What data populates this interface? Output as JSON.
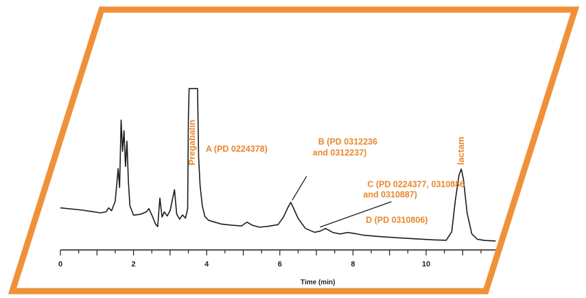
{
  "colors": {
    "frame": "#f0913a",
    "label": "#e8872e",
    "trace": "#1a1a1a",
    "axis": "#1a1a1a"
  },
  "chart_data": {
    "type": "line",
    "title": "",
    "xlabel": "Time (min)",
    "ylabel": "",
    "xlim": [
      0,
      11.9
    ],
    "ylim": [
      0,
      100
    ],
    "xticks": [
      0,
      2,
      4,
      6,
      8,
      10
    ],
    "grid": false,
    "series": [
      {
        "x": [
          0,
          0.6,
          1.1,
          1.25,
          1.32,
          1.4,
          1.5,
          1.58,
          1.62,
          1.66,
          1.7,
          1.74,
          1.78,
          1.82,
          1.86,
          1.9,
          2.0,
          2.2,
          2.35,
          2.42,
          2.5,
          2.6,
          2.66,
          2.72,
          2.78,
          2.84,
          2.92,
          3.0,
          3.06,
          3.12,
          3.18,
          3.26,
          3.34,
          3.42,
          3.48,
          3.5,
          3.52,
          3.75,
          3.78,
          3.82,
          3.88,
          3.95,
          4.05,
          4.2,
          4.4,
          4.7,
          4.95,
          5.1,
          5.25,
          5.45,
          5.7,
          5.95,
          6.1,
          6.22,
          6.3,
          6.38,
          6.5,
          6.7,
          6.95,
          7.1,
          7.25,
          7.45,
          7.65,
          7.85,
          8.05,
          8.3,
          8.7,
          9.2,
          9.7,
          10.2,
          10.55,
          10.7,
          10.8,
          10.9,
          10.96,
          11.02,
          11.12,
          11.25,
          11.4,
          11.6,
          11.9
        ],
        "values": [
          16.4,
          15.3,
          14.0,
          14.5,
          16.4,
          15.0,
          19.5,
          35.0,
          26.0,
          58.0,
          43.2,
          53.0,
          36.0,
          48.0,
          29.0,
          17.4,
          12.9,
          13.4,
          14.5,
          16.0,
          13.0,
          8.7,
          7.5,
          21.0,
          12.0,
          14.5,
          12.5,
          15.0,
          20.0,
          25.0,
          13.4,
          11.0,
          13.0,
          11.5,
          16.0,
          58.0,
          73.0,
          73.0,
          40.0,
          27.0,
          17.4,
          12.3,
          10.5,
          9.7,
          8.7,
          8.1,
          7.8,
          9.6,
          8.1,
          7.2,
          7.7,
          8.4,
          12.0,
          16.5,
          19.0,
          16.0,
          11.4,
          6.6,
          4.8,
          5.3,
          6.6,
          4.7,
          4.0,
          4.7,
          4.2,
          3.4,
          2.8,
          2.2,
          1.7,
          1.2,
          1.0,
          5.0,
          20.0,
          32.0,
          34.8,
          30.0,
          14.0,
          4.0,
          1.5,
          0.9,
          0.7
        ]
      }
    ],
    "annotations": [
      {
        "text": "Pregabalin",
        "x": 3.64,
        "y": 73
      },
      {
        "text": "A (PD 0224378)",
        "x": 3.9,
        "y": 40
      },
      {
        "text": "B (PD 0312236",
        "x": 6.3,
        "y": 19
      },
      {
        "text": "and 0312237)",
        "x": 6.3,
        "y": 19
      },
      {
        "text": "C (PD 0224377, 0310886",
        "x": 7.25,
        "y": 6.6
      },
      {
        "text": "and 0310887)",
        "x": 7.25,
        "y": 6.6
      },
      {
        "text": "D (PD 0310806)",
        "x": 7.9,
        "y": 4.7
      },
      {
        "text": "lactam",
        "x": 10.96,
        "y": 34.8
      }
    ]
  }
}
